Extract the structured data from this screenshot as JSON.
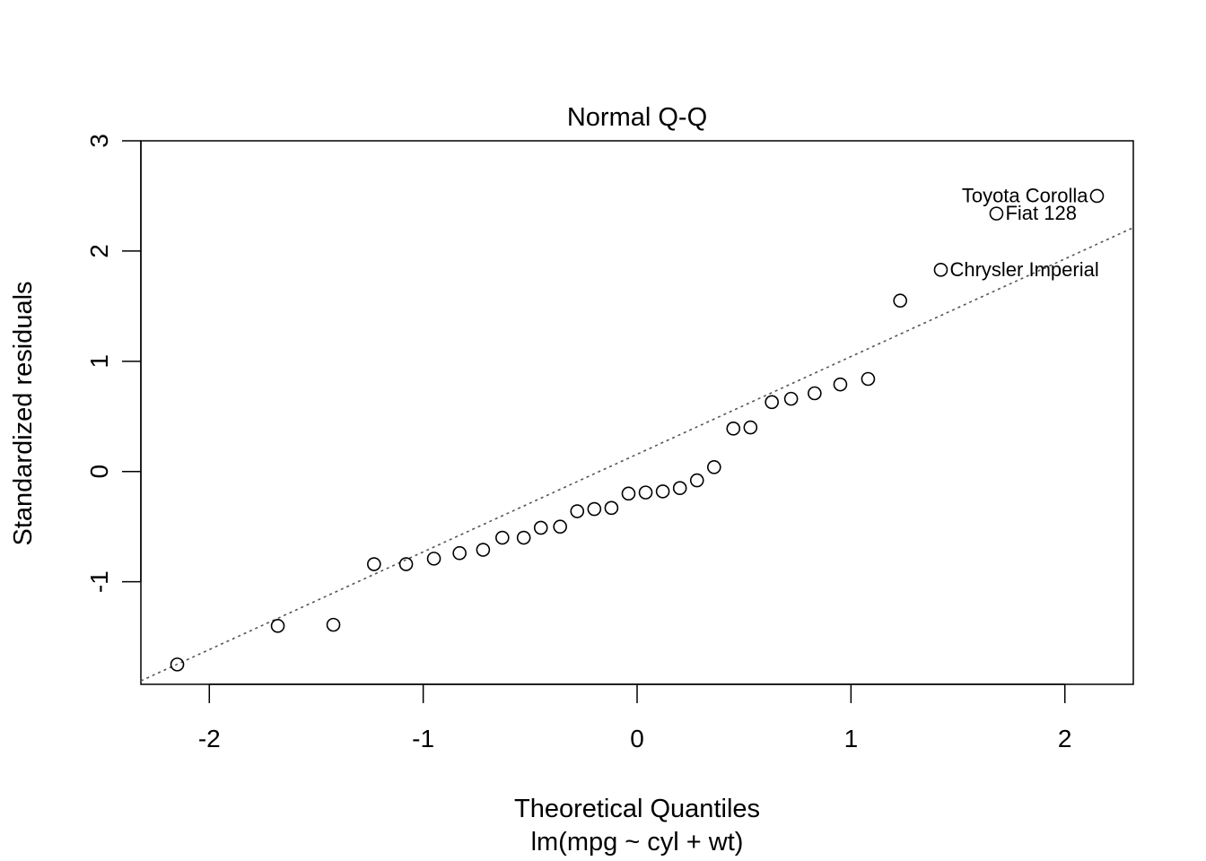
{
  "chart_data": {
    "type": "scatter",
    "title": "Normal Q-Q",
    "xlabel": "Theoretical Quantiles",
    "subtitle": "lm(mpg ~ cyl + wt)",
    "ylabel": "Standardized residuals",
    "xlim": [
      -2.32,
      2.32
    ],
    "ylim": [
      -1.93,
      3.0
    ],
    "x_ticks": [
      -2,
      -1,
      0,
      1,
      2
    ],
    "x_tick_labels": [
      "-2",
      "-1",
      "0",
      "1",
      "2"
    ],
    "y_ticks": [
      -1,
      0,
      1,
      2,
      3
    ],
    "y_tick_labels": [
      "-1",
      "0",
      "1",
      "2",
      "3"
    ],
    "grid": false,
    "reference_line": {
      "style": "dotted",
      "color": "#555555",
      "slope": 0.886,
      "intercept": 0.157
    },
    "points": [
      {
        "x": -2.15,
        "y": -1.75
      },
      {
        "x": -1.68,
        "y": -1.4
      },
      {
        "x": -1.42,
        "y": -1.39
      },
      {
        "x": -1.23,
        "y": -0.84
      },
      {
        "x": -1.08,
        "y": -0.84
      },
      {
        "x": -0.95,
        "y": -0.79
      },
      {
        "x": -0.83,
        "y": -0.74
      },
      {
        "x": -0.72,
        "y": -0.71
      },
      {
        "x": -0.63,
        "y": -0.6
      },
      {
        "x": -0.53,
        "y": -0.6
      },
      {
        "x": -0.45,
        "y": -0.51
      },
      {
        "x": -0.36,
        "y": -0.5
      },
      {
        "x": -0.28,
        "y": -0.36
      },
      {
        "x": -0.2,
        "y": -0.34
      },
      {
        "x": -0.12,
        "y": -0.33
      },
      {
        "x": -0.04,
        "y": -0.2
      },
      {
        "x": 0.04,
        "y": -0.19
      },
      {
        "x": 0.12,
        "y": -0.18
      },
      {
        "x": 0.2,
        "y": -0.15
      },
      {
        "x": 0.28,
        "y": -0.08
      },
      {
        "x": 0.36,
        "y": 0.04
      },
      {
        "x": 0.45,
        "y": 0.39
      },
      {
        "x": 0.53,
        "y": 0.4
      },
      {
        "x": 0.63,
        "y": 0.63
      },
      {
        "x": 0.72,
        "y": 0.66
      },
      {
        "x": 0.83,
        "y": 0.71
      },
      {
        "x": 0.95,
        "y": 0.79
      },
      {
        "x": 1.08,
        "y": 0.84
      },
      {
        "x": 1.23,
        "y": 1.55
      },
      {
        "x": 1.42,
        "y": 1.83,
        "label": "Chrysler Imperial"
      },
      {
        "x": 1.68,
        "y": 2.34,
        "label": "Fiat 128"
      },
      {
        "x": 2.15,
        "y": 2.5,
        "label": "Toyota Corolla"
      }
    ]
  }
}
